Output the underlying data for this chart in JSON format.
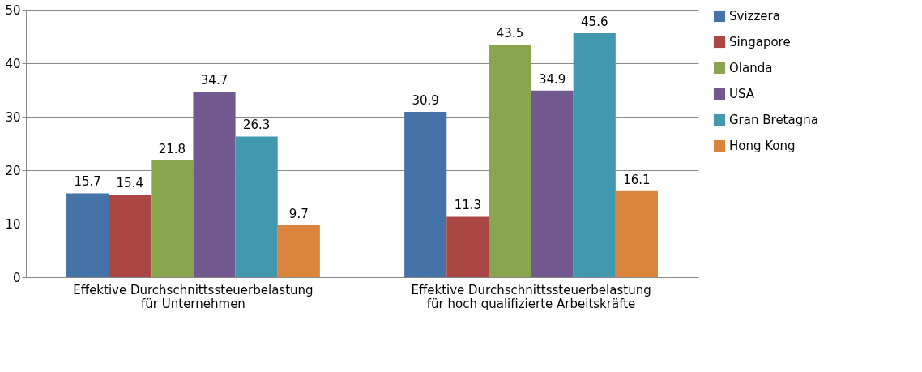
{
  "chart_data": {
    "type": "bar",
    "categories": [
      "Effektive Durchschnittssteuerbelastung für Unternehmen",
      "Effektive Durchschnittssteuerbelastung für hoch qualifizierte Arbeitskräfte"
    ],
    "series": [
      {
        "name": "Svizzera",
        "color": "#4572a7",
        "values": [
          15.7,
          30.9
        ]
      },
      {
        "name": "Singapore",
        "color": "#aa4643",
        "values": [
          15.4,
          11.3
        ]
      },
      {
        "name": "Olanda",
        "color": "#89a54e",
        "values": [
          21.8,
          43.5
        ]
      },
      {
        "name": "USA",
        "color": "#71588f",
        "values": [
          34.7,
          34.9
        ]
      },
      {
        "name": "Gran Bretagna",
        "color": "#4198af",
        "values": [
          26.3,
          45.6
        ]
      },
      {
        "name": "Hong Kong",
        "color": "#db843d",
        "values": [
          9.7,
          16.1
        ]
      }
    ],
    "ylim": [
      0,
      50
    ],
    "yticks": [
      0,
      10,
      20,
      30,
      40,
      50
    ],
    "grid": "y",
    "legend": "right",
    "data_labels": true
  }
}
